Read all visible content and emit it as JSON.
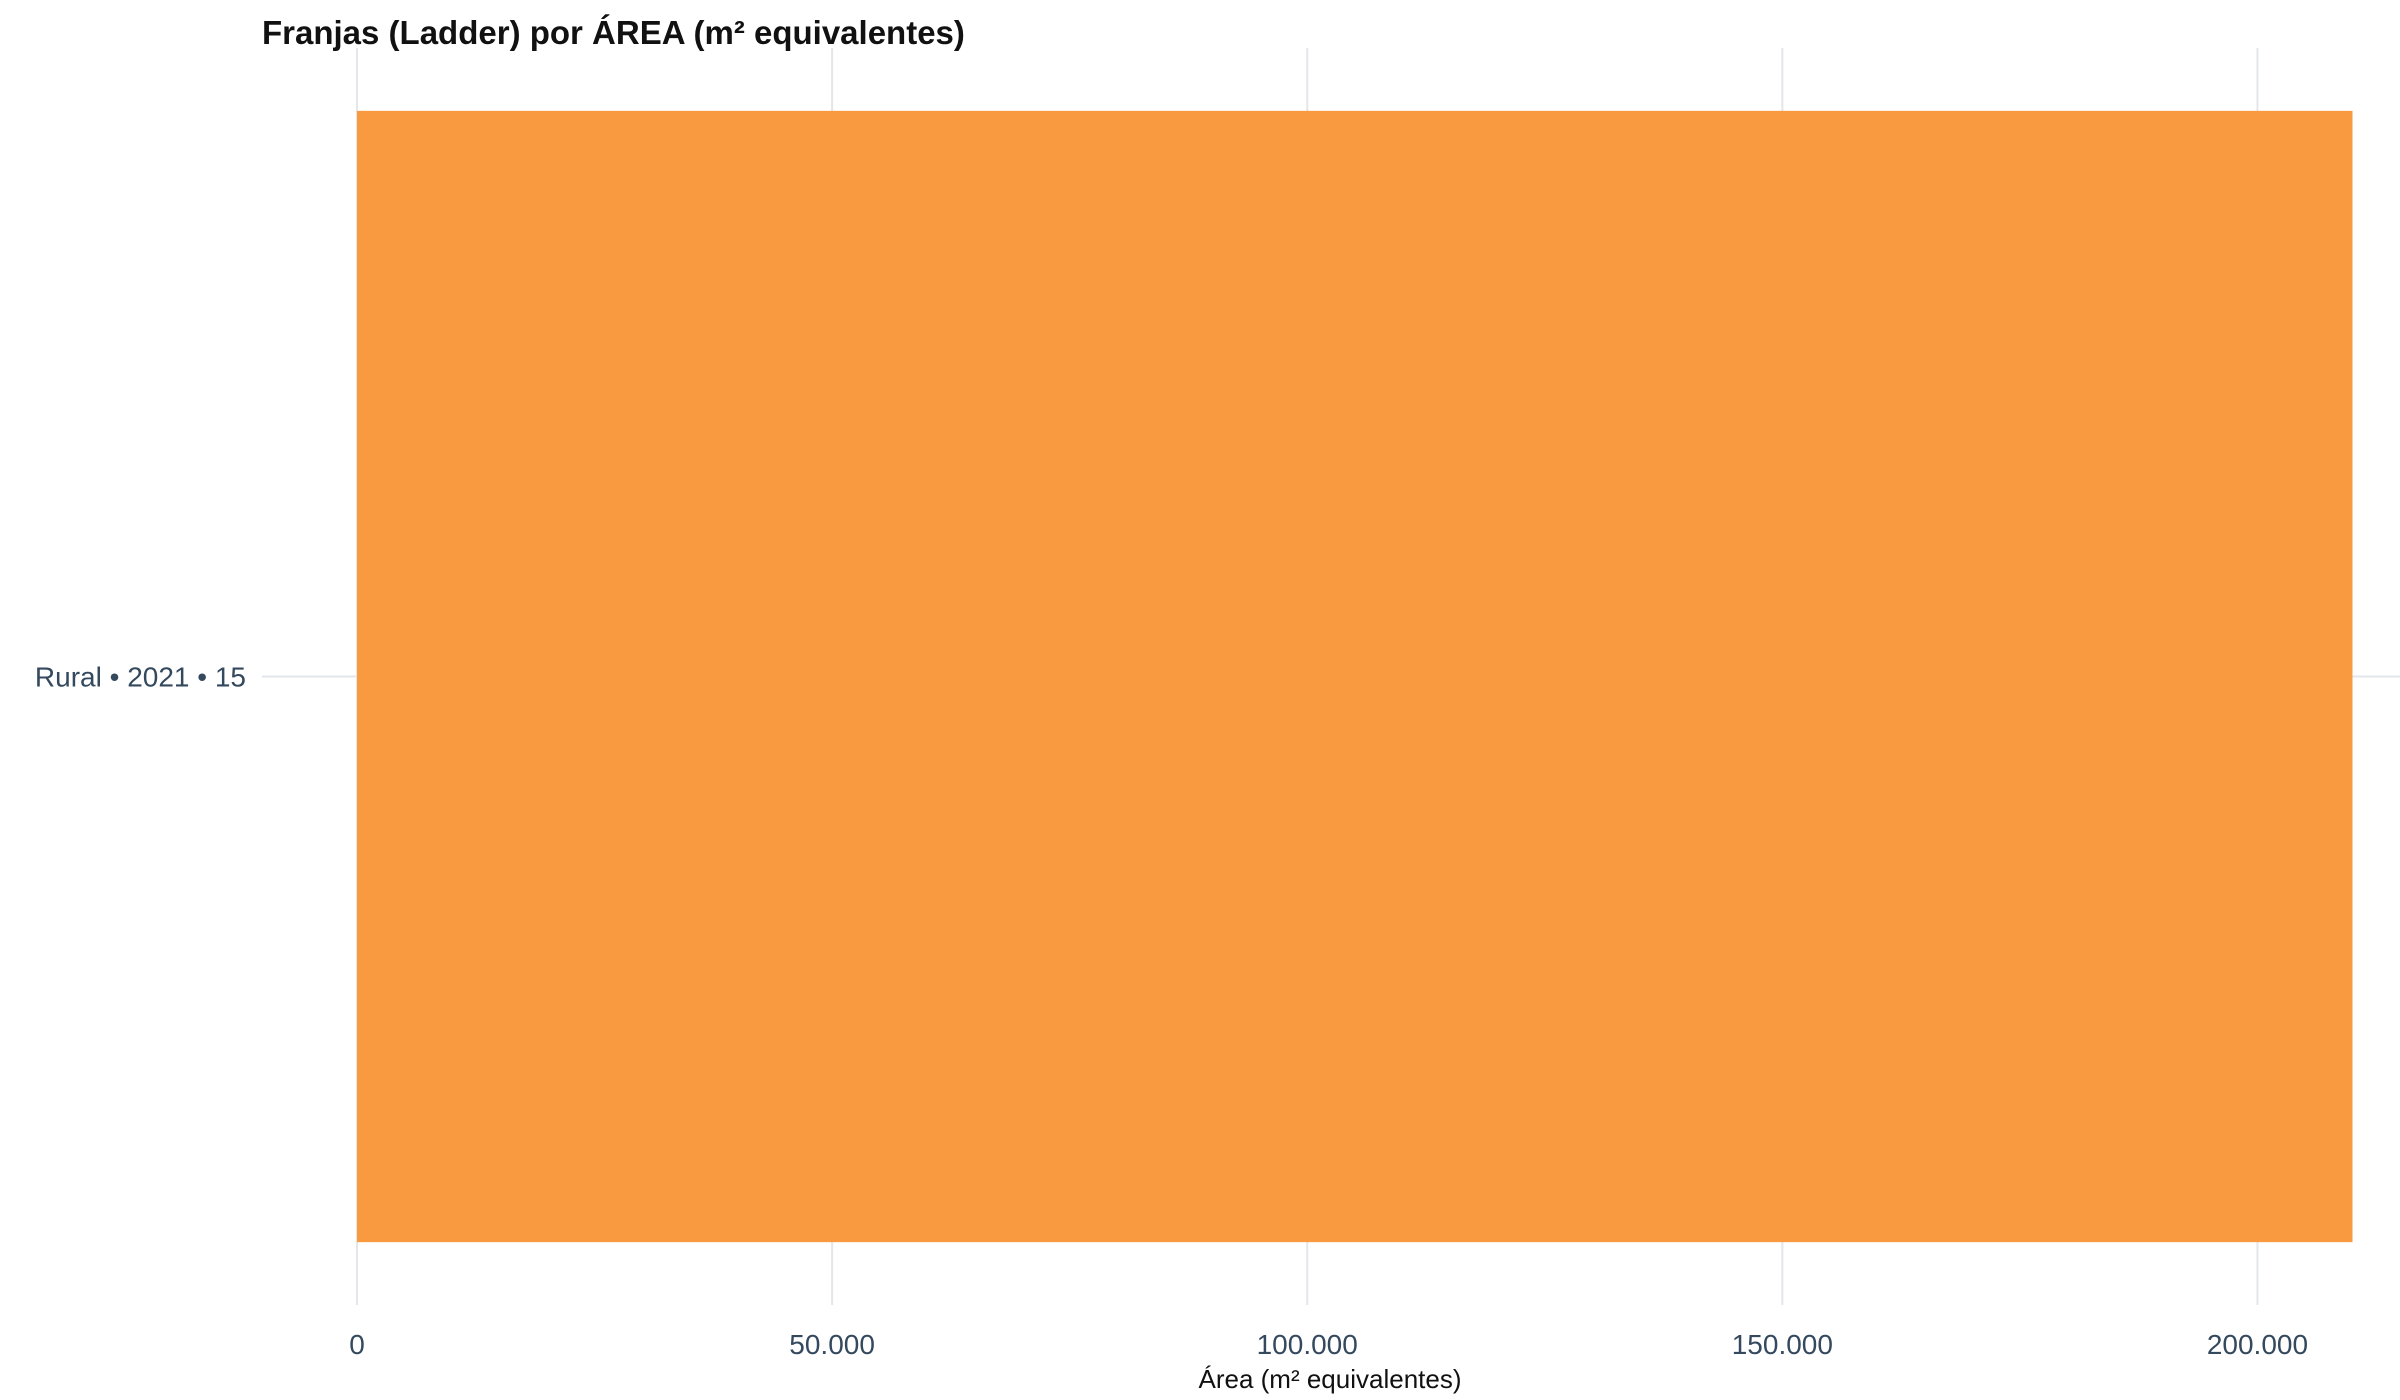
{
  "chart_data": {
    "type": "bar",
    "orientation": "horizontal",
    "title": "Franjas (Ladder) por ÁREA (m² equivalentes)",
    "xlabel": "Área (m² equivalentes)",
    "ylabel": "",
    "categories": [
      "Rural • 2021 • 15"
    ],
    "values": [
      210000
    ],
    "xlim": [
      0,
      215000
    ],
    "xticks": [
      0,
      50000,
      100000,
      150000,
      200000
    ],
    "xtick_labels": [
      "0",
      "50.000",
      "100.000",
      "150.000",
      "200.000"
    ],
    "bar_color": "#f99a41",
    "grid": true,
    "legend": "none"
  }
}
